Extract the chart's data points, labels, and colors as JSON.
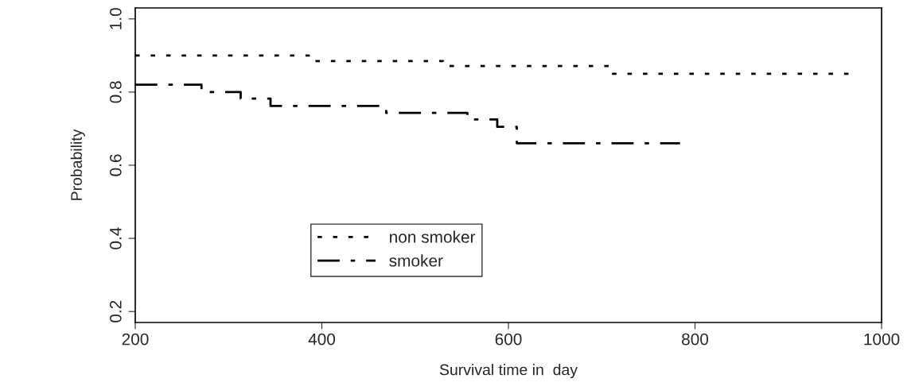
{
  "chart_data": {
    "type": "step",
    "xlabel": "Survival time in  day",
    "ylabel": "Probability",
    "xlim": [
      200,
      1000
    ],
    "xticks": [
      200,
      400,
      600,
      800,
      1000
    ],
    "ylim": [
      0.17,
      1.03
    ],
    "yticks": [
      0.2,
      0.4,
      0.6,
      0.8,
      {
        "value": 1,
        "label": "1.0"
      }
    ],
    "grid": false,
    "legend": "bottom",
    "series": [
      {
        "name": "non smoker",
        "color": "#000000",
        "line_style": "dotted",
        "x": [
          200,
          386,
          530,
          712,
          967
        ],
        "values": [
          0.9,
          0.885,
          0.871,
          0.85,
          0.85
        ]
      },
      {
        "name": "smoker",
        "color": "#000000",
        "line_style": "dashdot",
        "x": [
          200,
          271,
          313,
          345,
          469,
          556,
          588,
          609,
          784
        ],
        "values": [
          0.82,
          0.8,
          0.782,
          0.762,
          0.743,
          0.725,
          0.705,
          0.66,
          0.66
        ]
      }
    ]
  }
}
